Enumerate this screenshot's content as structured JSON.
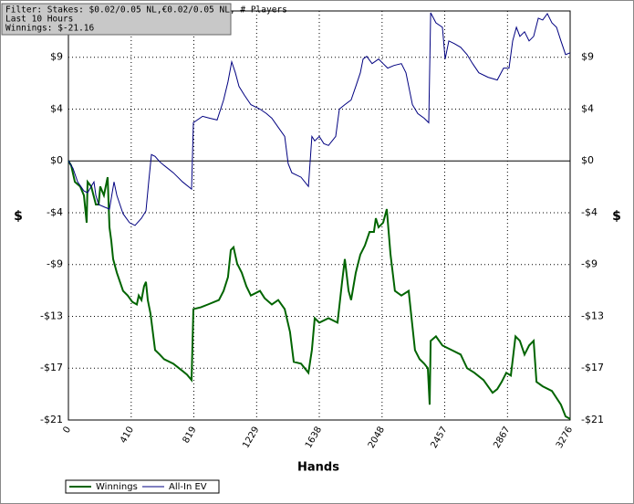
{
  "chart_data": {
    "type": "line",
    "info": [
      "Filter: Stakes: $0.02/0.05 NL,€0.02/0.05 NL, # Players",
      "Last  10 Hours",
      "Winnings: $-21.16"
    ],
    "x_label": "Hands",
    "y_label": "$",
    "y2_label": "$",
    "xlim": [
      0,
      3276
    ],
    "xticks": [
      0,
      410,
      819,
      1229,
      1638,
      2048,
      2457,
      2867,
      3276
    ],
    "ylim": [
      -21.25,
      12.3
    ],
    "yticks": [
      {
        "value": 8.5,
        "label": "$9"
      },
      {
        "value": 4.25,
        "label": "$4"
      },
      {
        "value": 0,
        "label": "$0"
      },
      {
        "value": -4.25,
        "label": "-$4"
      },
      {
        "value": -8.5,
        "label": "-$9"
      },
      {
        "value": -12.75,
        "label": "-$13"
      },
      {
        "value": -17,
        "label": "-$17"
      },
      {
        "value": -21.25,
        "label": "-$21"
      }
    ],
    "grid": true,
    "series": [
      {
        "name": "Winnings",
        "color": "#006400",
        "x": [
          0,
          18,
          42,
          77,
          101,
          119,
          125,
          149,
          179,
          197,
          208,
          232,
          256,
          268,
          280,
          292,
          316,
          357,
          387,
          417,
          447,
          459,
          477,
          494,
          506,
          518,
          536,
          566,
          596,
          625,
          685,
          745,
          774,
          804,
          816,
          864,
          911,
          983,
          1013,
          1042,
          1060,
          1078,
          1102,
          1132,
          1162,
          1191,
          1251,
          1281,
          1328,
          1370,
          1412,
          1447,
          1471,
          1519,
          1567,
          1590,
          1608,
          1638,
          1698,
          1757,
          1787,
          1805,
          1829,
          1846,
          1876,
          1906,
          1936,
          1966,
          1995,
          2007,
          2025,
          2055,
          2079,
          2103,
          2132,
          2174,
          2222,
          2234,
          2263,
          2293,
          2323,
          2347,
          2359,
          2365,
          2400,
          2442,
          2502,
          2561,
          2603,
          2651,
          2710,
          2770,
          2800,
          2829,
          2859,
          2889,
          2919,
          2948,
          2978,
          3008,
          3038,
          3056,
          3097,
          3157,
          3216,
          3246,
          3276
        ],
        "values": [
          0,
          -0.37,
          -1.72,
          -2.09,
          -2.83,
          -5.07,
          -1.72,
          -2.09,
          -3.58,
          -3.58,
          -2.09,
          -2.83,
          -1.34,
          -5.44,
          -6.56,
          -8.05,
          -9.17,
          -10.66,
          -11.04,
          -11.56,
          -11.78,
          -11.04,
          -11.41,
          -10.29,
          -9.92,
          -11.41,
          -12.53,
          -15.51,
          -15.88,
          -16.26,
          -16.63,
          -17.23,
          -17.52,
          -17.97,
          -12.15,
          -12.01,
          -11.78,
          -11.41,
          -10.66,
          -9.54,
          -7.31,
          -7.08,
          -8.43,
          -9.17,
          -10.29,
          -11.04,
          -10.66,
          -11.26,
          -11.78,
          -11.41,
          -12.15,
          -14.02,
          -16.48,
          -16.63,
          -17.38,
          -15.51,
          -12.9,
          -13.27,
          -12.9,
          -13.27,
          -9.92,
          -8.05,
          -10.66,
          -11.41,
          -9.17,
          -7.68,
          -6.94,
          -5.82,
          -5.82,
          -4.7,
          -5.44,
          -5.07,
          -3.95,
          -7.68,
          -10.66,
          -11.04,
          -10.66,
          -12.15,
          -15.51,
          -16.26,
          -16.63,
          -17.0,
          -19.99,
          -14.76,
          -14.39,
          -15.14,
          -15.51,
          -15.88,
          -17.0,
          -17.38,
          -17.97,
          -19.02,
          -18.72,
          -18.12,
          -17.38,
          -17.6,
          -14.39,
          -14.76,
          -15.88,
          -15.14,
          -14.76,
          -18.12,
          -18.49,
          -18.87,
          -19.99,
          -20.96,
          -21.16
        ]
      },
      {
        "name": "All-In EV",
        "color": "#000080",
        "x": [
          0,
          30,
          60,
          101,
          125,
          149,
          167,
          179,
          197,
          238,
          268,
          298,
          316,
          357,
          399,
          435,
          477,
          506,
          524,
          542,
          566,
          596,
          625,
          685,
          745,
          804,
          816,
          876,
          923,
          971,
          1013,
          1042,
          1066,
          1090,
          1114,
          1150,
          1191,
          1251,
          1293,
          1328,
          1370,
          1412,
          1435,
          1459,
          1519,
          1567,
          1590,
          1608,
          1638,
          1668,
          1698,
          1745,
          1769,
          1805,
          1846,
          1876,
          1906,
          1924,
          1948,
          1983,
          2025,
          2055,
          2085,
          2126,
          2174,
          2204,
          2246,
          2281,
          2323,
          2353,
          2365,
          2400,
          2442,
          2460,
          2484,
          2520,
          2561,
          2603,
          2639,
          2680,
          2740,
          2800,
          2841,
          2877,
          2901,
          2925,
          2948,
          2978,
          3008,
          3038,
          3068,
          3097,
          3127,
          3157,
          3187,
          3216,
          3246,
          3276
        ],
        "values": [
          0,
          -0.6,
          -1.72,
          -2.46,
          -2.61,
          -2.09,
          -1.72,
          -2.83,
          -3.58,
          -3.8,
          -3.95,
          -1.72,
          -2.83,
          -4.33,
          -5.07,
          -5.29,
          -4.7,
          -4.1,
          -1.72,
          0.52,
          0.37,
          -0.07,
          -0.37,
          -0.97,
          -1.72,
          -2.31,
          3.13,
          3.66,
          3.5,
          3.36,
          5.0,
          6.49,
          8.13,
          7.23,
          6.11,
          5.37,
          4.62,
          4.25,
          3.88,
          3.5,
          2.76,
          2.01,
          -0.22,
          -0.97,
          -1.34,
          -2.09,
          2.01,
          1.64,
          2.01,
          1.42,
          1.27,
          2.01,
          4.25,
          4.62,
          5.0,
          6.11,
          7.23,
          8.35,
          8.58,
          7.98,
          8.35,
          7.98,
          7.61,
          7.83,
          7.98,
          7.23,
          4.62,
          3.88,
          3.5,
          3.13,
          12.15,
          11.33,
          10.96,
          8.35,
          9.84,
          9.62,
          9.32,
          8.72,
          7.98,
          7.23,
          6.86,
          6.64,
          7.61,
          7.61,
          9.84,
          10.96,
          10.22,
          10.59,
          9.84,
          10.22,
          11.71,
          11.56,
          12.08,
          11.33,
          10.96,
          9.84,
          8.72,
          8.87
        ]
      }
    ]
  }
}
